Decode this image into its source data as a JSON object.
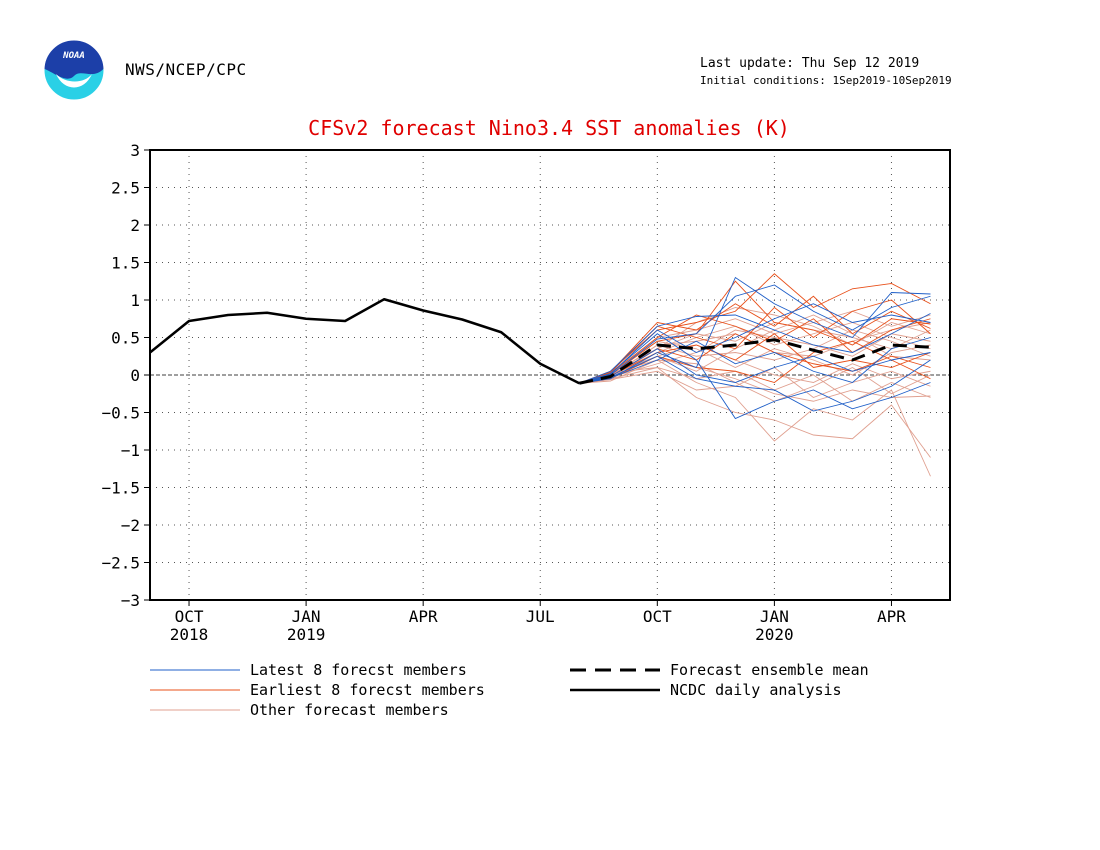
{
  "header": {
    "logo_text": "NOAA",
    "agency": "NWS/NCEP/CPC",
    "last_update": "Last update: Thu Sep 12 2019",
    "initial_conditions": "Initial conditions: 1Sep2019-10Sep2019"
  },
  "colors": {
    "title": "#e00000",
    "latest": "#1f5fc8",
    "earliest": "#e8501a",
    "other": "#e0a090",
    "analysis": "#000000",
    "logo_top": "#1c3fa8",
    "logo_bottom": "#2ad0e6"
  },
  "chart_data": {
    "type": "line",
    "title": "CFSv2 forecast Nino3.4 SST anomalies (K)",
    "ylim": [
      -3,
      3
    ],
    "yticks": [
      "3",
      "2.5",
      "2",
      "1.5",
      "1",
      "0.5",
      "0",
      "−0.5",
      "−1",
      "−1.5",
      "−2",
      "−2.5",
      "−3"
    ],
    "ytick_values": [
      3,
      2.5,
      2,
      1.5,
      1,
      0.5,
      0,
      -0.5,
      -1,
      -1.5,
      -2,
      -2.5,
      -3
    ],
    "xlim": [
      0,
      20.5
    ],
    "xticks": [
      {
        "x": 1,
        "label": "OCT",
        "sub": "2018"
      },
      {
        "x": 4,
        "label": "JAN",
        "sub": "2019"
      },
      {
        "x": 7,
        "label": "APR",
        "sub": ""
      },
      {
        "x": 10,
        "label": "JUL",
        "sub": ""
      },
      {
        "x": 13,
        "label": "OCT",
        "sub": ""
      },
      {
        "x": 16,
        "label": "JAN",
        "sub": "2020"
      },
      {
        "x": 19,
        "label": "APR",
        "sub": ""
      }
    ],
    "grid": true,
    "zero_line": true,
    "series": [
      {
        "name": "NCDC daily analysis",
        "style": "solid-thick",
        "x": [
          0,
          1,
          2,
          3,
          4,
          5,
          6,
          7,
          8,
          9,
          10,
          11
        ],
        "y": [
          0.3,
          0.72,
          0.8,
          0.83,
          0.75,
          0.72,
          1.01,
          0.86,
          0.74,
          0.57,
          0.15,
          -0.11
        ]
      },
      {
        "name": "Forecast ensemble mean",
        "style": "dashed-thick",
        "x": [
          11,
          11.8,
          13,
          14,
          15,
          16,
          17,
          18,
          19,
          20
        ],
        "y": [
          -0.11,
          -0.02,
          0.4,
          0.35,
          0.4,
          0.47,
          0.33,
          0.2,
          0.4,
          0.37
        ]
      },
      {
        "name": "Latest 8 forecst members",
        "style": "latest",
        "members": [
          [
            -0.11,
            0.0,
            0.48,
            0.55,
            1.05,
            1.2,
            0.85,
            0.6,
            0.9,
            1.05
          ],
          [
            -0.11,
            -0.05,
            0.3,
            0.1,
            1.3,
            0.95,
            0.7,
            0.5,
            1.1,
            1.08
          ],
          [
            -0.11,
            0.02,
            0.55,
            0.2,
            -0.58,
            -0.35,
            -0.2,
            -0.45,
            -0.3,
            -0.1
          ],
          [
            -0.11,
            -0.03,
            0.25,
            -0.05,
            -0.15,
            -0.2,
            -0.48,
            -0.35,
            -0.15,
            0.2
          ],
          [
            -0.11,
            0.05,
            0.65,
            0.78,
            0.8,
            0.6,
            0.4,
            0.3,
            0.55,
            0.82
          ],
          [
            -0.11,
            -0.02,
            0.35,
            0.0,
            -0.1,
            0.1,
            0.25,
            0.05,
            0.2,
            0.3
          ],
          [
            -0.11,
            0.01,
            0.6,
            0.3,
            0.5,
            0.75,
            0.95,
            0.7,
            0.8,
            0.7
          ],
          [
            -0.11,
            -0.04,
            0.2,
            0.45,
            0.15,
            0.3,
            0.05,
            -0.1,
            0.35,
            0.5
          ]
        ]
      },
      {
        "name": "Earliest 8 forecst members",
        "style": "earliest",
        "members": [
          [
            -0.11,
            0.05,
            0.6,
            0.7,
            0.85,
            1.35,
            0.9,
            1.15,
            1.22,
            0.95
          ],
          [
            -0.11,
            0.0,
            0.45,
            0.55,
            1.25,
            0.7,
            0.6,
            0.4,
            0.75,
            0.68
          ],
          [
            -0.11,
            -0.02,
            0.35,
            0.2,
            0.55,
            0.3,
            0.15,
            0.05,
            0.25,
            0.1
          ],
          [
            -0.11,
            0.03,
            0.65,
            0.5,
            0.35,
            0.9,
            0.5,
            0.85,
            1.0,
            0.55
          ],
          [
            -0.11,
            -0.05,
            0.25,
            0.1,
            0.05,
            -0.1,
            0.3,
            0.45,
            0.2,
            -0.05
          ],
          [
            -0.11,
            0.02,
            0.5,
            0.8,
            0.65,
            0.45,
            0.75,
            0.3,
            0.6,
            0.75
          ],
          [
            -0.11,
            -0.01,
            0.3,
            0.4,
            0.2,
            0.55,
            0.1,
            0.2,
            0.1,
            0.3
          ],
          [
            -0.11,
            0.04,
            0.7,
            0.6,
            0.95,
            0.65,
            1.05,
            0.55,
            0.85,
            0.62
          ]
        ]
      },
      {
        "name": "Other forecast members",
        "style": "other",
        "members": [
          [
            -0.11,
            -0.08,
            0.2,
            -0.1,
            -0.3,
            -0.88,
            -0.45,
            -0.6,
            -0.2,
            -1.35
          ],
          [
            -0.11,
            -0.05,
            0.1,
            -0.3,
            -0.5,
            -0.6,
            -0.8,
            -0.85,
            -0.4,
            -1.1
          ],
          [
            -0.11,
            0.0,
            0.3,
            0.1,
            -0.05,
            -0.25,
            -0.35,
            -0.2,
            -0.3,
            -0.28
          ],
          [
            -0.11,
            0.02,
            0.25,
            0.4,
            0.2,
            0.0,
            -0.1,
            0.15,
            -0.05,
            0.05
          ],
          [
            -0.11,
            -0.03,
            0.15,
            0.3,
            0.6,
            0.5,
            0.4,
            0.25,
            0.55,
            0.45
          ],
          [
            -0.11,
            0.03,
            0.35,
            0.55,
            0.45,
            0.7,
            0.6,
            0.5,
            0.35,
            0.6
          ],
          [
            -0.11,
            -0.02,
            0.4,
            0.25,
            0.3,
            0.2,
            0.35,
            0.6,
            0.45,
            0.25
          ],
          [
            -0.11,
            0.01,
            0.5,
            0.6,
            0.75,
            0.55,
            0.7,
            0.85,
            0.65,
            0.8
          ],
          [
            -0.11,
            -0.06,
            0.05,
            -0.2,
            -0.15,
            0.1,
            -0.3,
            -0.1,
            0.05,
            -0.15
          ],
          [
            -0.11,
            0.04,
            0.45,
            0.35,
            0.1,
            0.35,
            0.2,
            0.0,
            0.3,
            0.4
          ],
          [
            -0.11,
            -0.01,
            0.3,
            0.5,
            0.65,
            0.4,
            0.55,
            0.7,
            0.5,
            0.35
          ],
          [
            -0.11,
            0.02,
            0.2,
            0.15,
            -0.1,
            -0.35,
            -0.15,
            0.1,
            -0.25,
            0.0
          ],
          [
            -0.11,
            -0.04,
            0.35,
            0.7,
            0.9,
            0.8,
            0.65,
            0.4,
            0.7,
            0.55
          ],
          [
            -0.11,
            0.0,
            0.25,
            0.05,
            0.35,
            0.6,
            0.8,
            0.55,
            0.25,
            0.2
          ],
          [
            -0.11,
            0.03,
            0.1,
            -0.05,
            0.05,
            -0.2,
            0.0,
            -0.35,
            -0.1,
            -0.3
          ],
          [
            -0.11,
            -0.02,
            0.4,
            0.45,
            0.55,
            0.3,
            0.25,
            0.45,
            0.6,
            0.7
          ]
        ]
      }
    ],
    "legend": [
      {
        "label": "Latest 8 forecst members",
        "style": "latest"
      },
      {
        "label": "Earliest 8 forecst members",
        "style": "earliest"
      },
      {
        "label": "Other forecast members",
        "style": "other"
      },
      {
        "label": "Forecast ensemble mean",
        "style": "dashed-thick"
      },
      {
        "label": "NCDC daily analysis",
        "style": "solid-thick"
      }
    ],
    "member_x": [
      11,
      11.8,
      13,
      14,
      15,
      16,
      17,
      18,
      19,
      20
    ]
  }
}
